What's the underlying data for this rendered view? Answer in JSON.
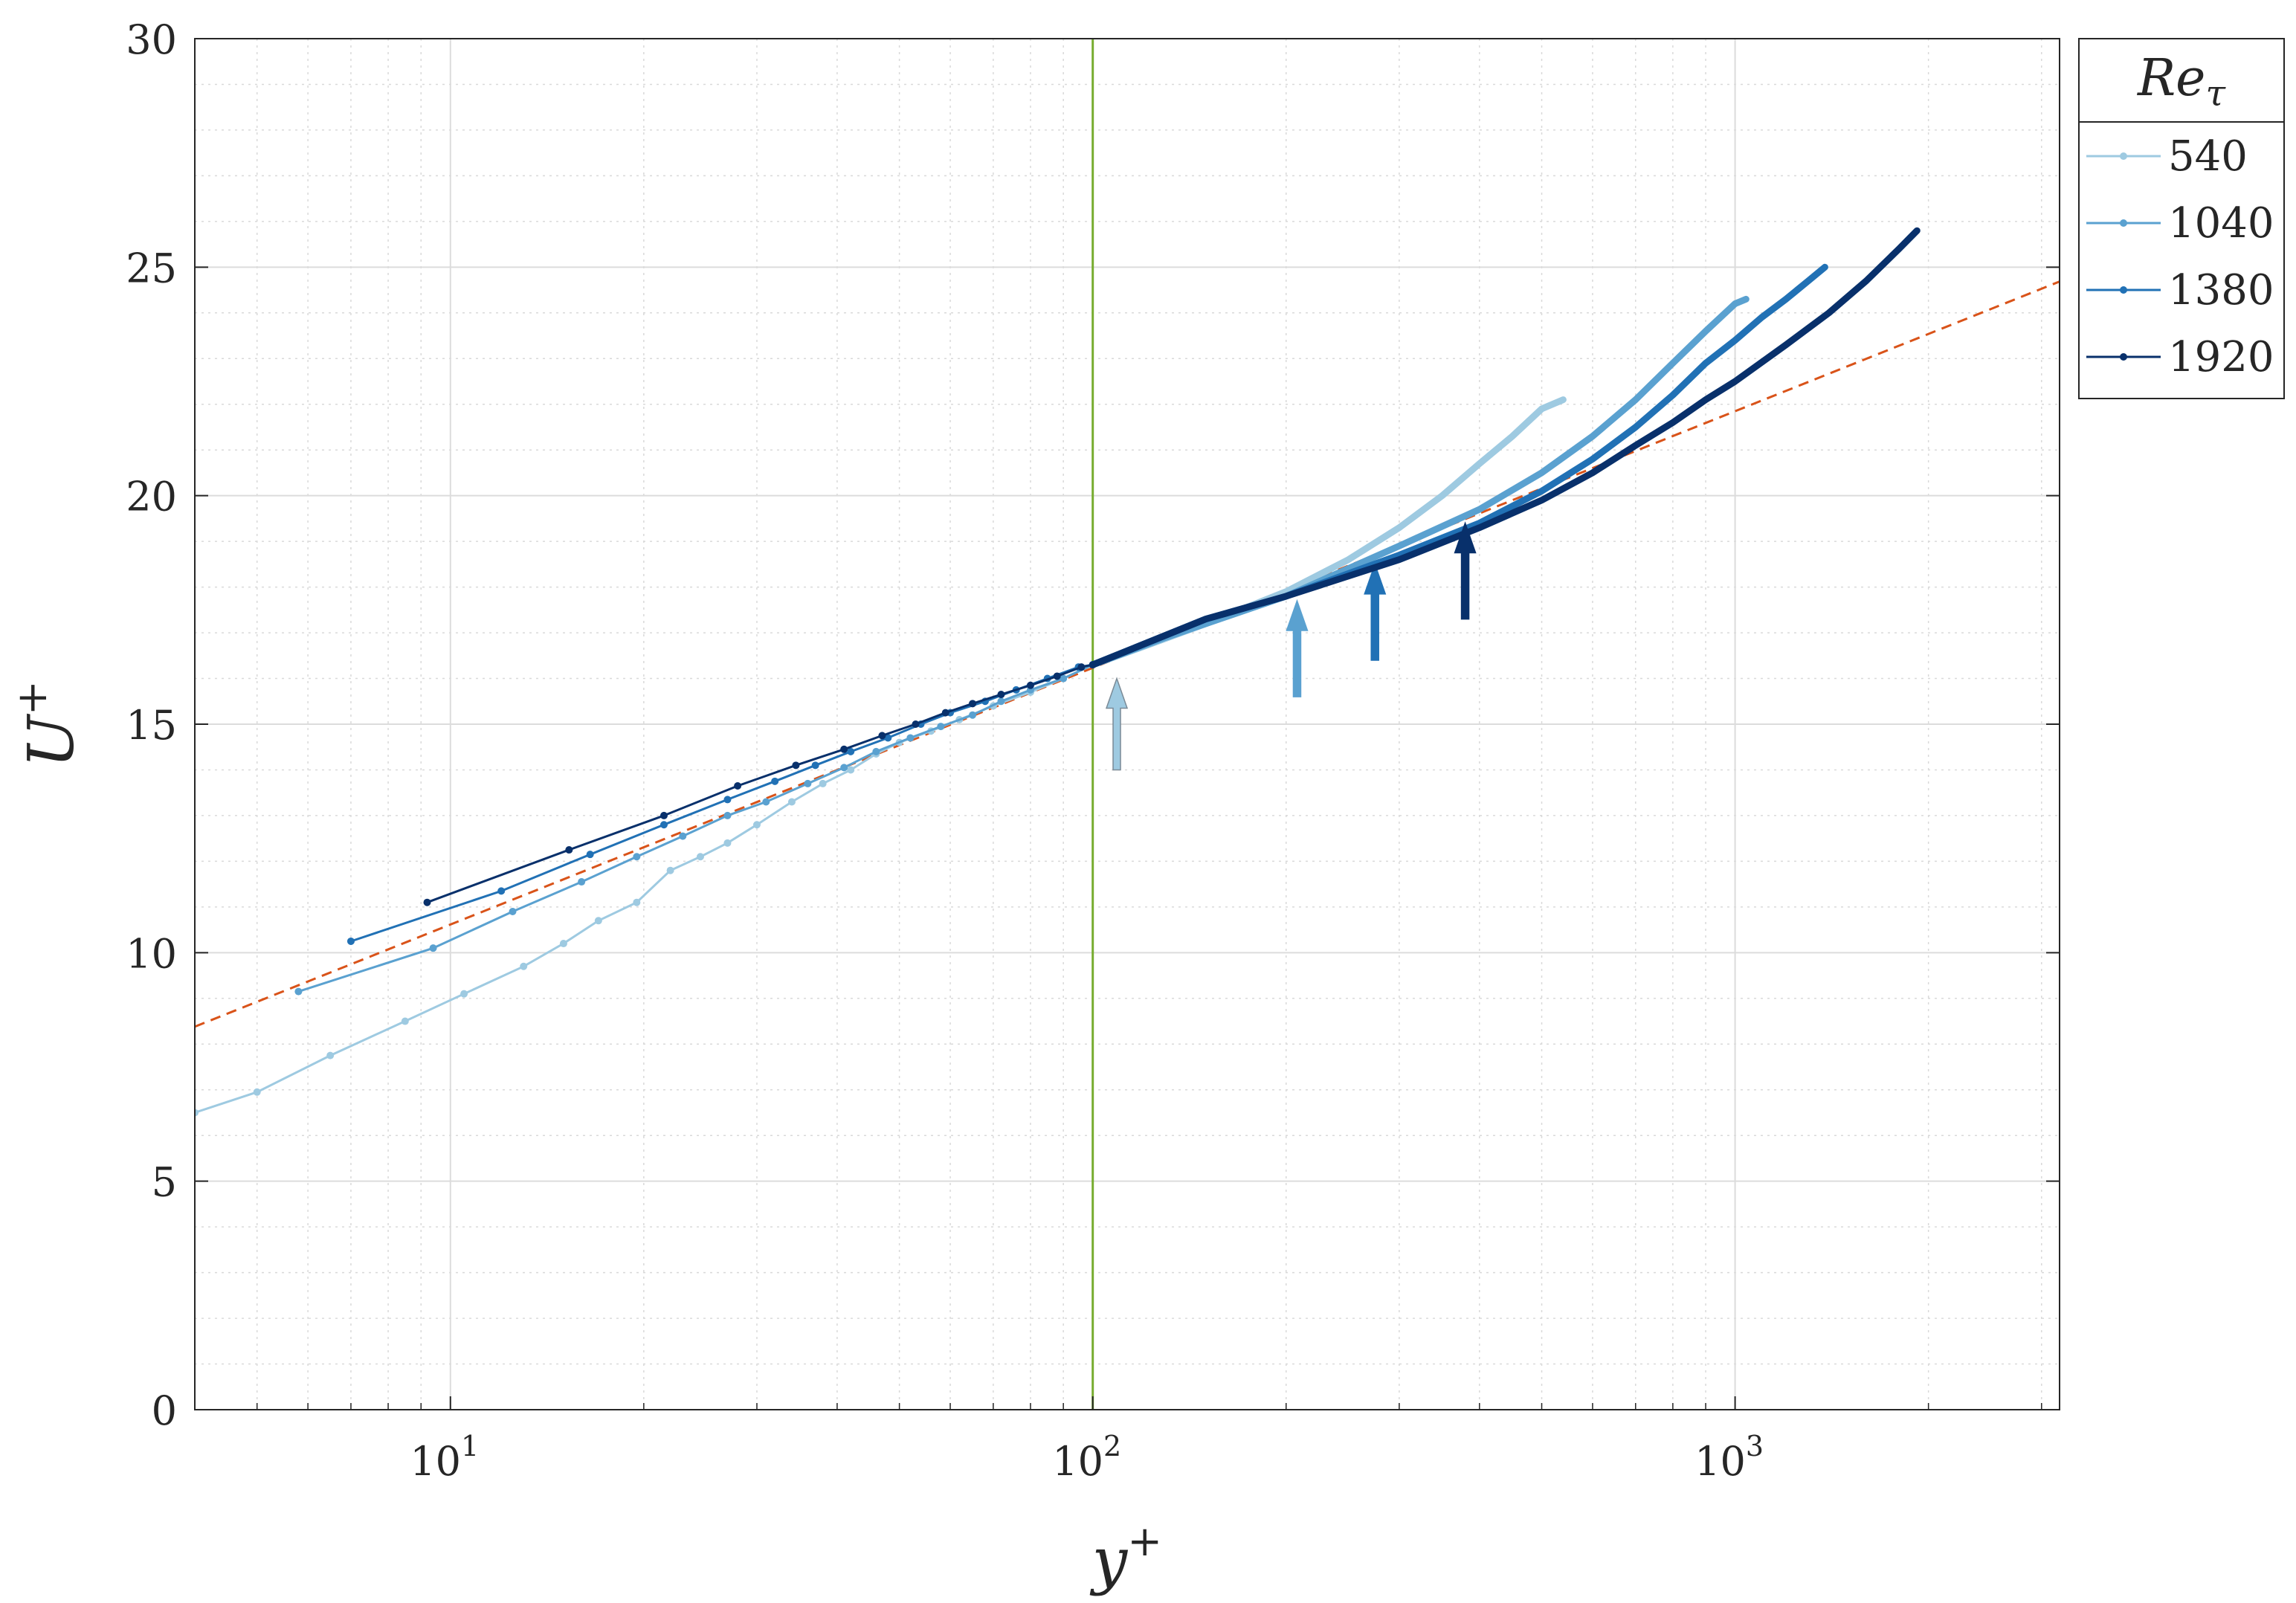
{
  "chart_data": {
    "type": "line",
    "x_scale": "log",
    "xlabel": "y",
    "xlabel_sup": "+",
    "ylabel": "U",
    "ylabel_sup": "+",
    "xlim": [
      4,
      3200
    ],
    "ylim": [
      0,
      30
    ],
    "x_ticks": [
      10,
      100,
      1000
    ],
    "x_tick_labels": [
      {
        "base": "10",
        "exp": "1"
      },
      {
        "base": "10",
        "exp": "2"
      },
      {
        "base": "10",
        "exp": "3"
      }
    ],
    "y_ticks": [
      0,
      5,
      10,
      15,
      20,
      25,
      30
    ],
    "y_tick_labels": [
      "0",
      "5",
      "10",
      "15",
      "20",
      "25",
      "30"
    ],
    "grid": true,
    "minor_grid": true,
    "legend": {
      "position": "outside-right-top",
      "title_base": "Re",
      "title_sub": "τ"
    },
    "log_law": {
      "kappa": 0.41,
      "B": 5.0,
      "color": "#d95319",
      "style": "dashed"
    },
    "vertical_line": {
      "x": 100,
      "color": "#77ac30"
    },
    "series": [
      {
        "name": "540",
        "color": "#9ecae1",
        "points": [
          [
            4,
            6.5
          ],
          [
            5,
            6.95
          ],
          [
            6.5,
            7.75
          ],
          [
            8.5,
            8.5
          ],
          [
            10.5,
            9.1
          ],
          [
            13,
            9.7
          ],
          [
            15,
            10.2
          ],
          [
            17,
            10.7
          ],
          [
            19.5,
            11.1
          ],
          [
            22,
            11.8
          ],
          [
            24.5,
            12.1
          ],
          [
            27,
            12.4
          ],
          [
            30,
            12.8
          ],
          [
            34,
            13.3
          ],
          [
            38,
            13.7
          ],
          [
            42,
            14.0
          ],
          [
            46,
            14.35
          ],
          [
            50,
            14.6
          ],
          [
            56,
            14.85
          ],
          [
            62,
            15.1
          ],
          [
            70,
            15.4
          ],
          [
            80,
            15.7
          ],
          [
            90,
            16.0
          ],
          [
            100,
            16.3
          ],
          [
            120,
            16.7
          ],
          [
            150,
            17.2
          ],
          [
            200,
            17.9
          ],
          [
            250,
            18.6
          ],
          [
            300,
            19.3
          ],
          [
            350,
            20.0
          ],
          [
            400,
            20.7
          ],
          [
            450,
            21.3
          ],
          [
            500,
            21.9
          ],
          [
            540,
            22.1
          ]
        ],
        "marker_until": 100,
        "arrow": {
          "x": 109,
          "y_base": 14.0,
          "y_tip": 16.0
        }
      },
      {
        "name": "1040",
        "color": "#5aa1d0",
        "points": [
          [
            5.8,
            9.15
          ],
          [
            9.4,
            10.1
          ],
          [
            12.5,
            10.9
          ],
          [
            16,
            11.55
          ],
          [
            19.5,
            12.1
          ],
          [
            23,
            12.55
          ],
          [
            27,
            13.0
          ],
          [
            31,
            13.3
          ],
          [
            36,
            13.7
          ],
          [
            41,
            14.05
          ],
          [
            46,
            14.4
          ],
          [
            52,
            14.7
          ],
          [
            58,
            14.95
          ],
          [
            65,
            15.2
          ],
          [
            72,
            15.5
          ],
          [
            80,
            15.75
          ],
          [
            90,
            16.0
          ],
          [
            100,
            16.3
          ],
          [
            130,
            16.9
          ],
          [
            200,
            17.8
          ],
          [
            300,
            18.9
          ],
          [
            400,
            19.7
          ],
          [
            500,
            20.5
          ],
          [
            600,
            21.3
          ],
          [
            700,
            22.1
          ],
          [
            800,
            22.9
          ],
          [
            900,
            23.6
          ],
          [
            1000,
            24.2
          ],
          [
            1040,
            24.3
          ]
        ],
        "marker_until": 100,
        "arrow": {
          "x": 208,
          "y_base": 15.6,
          "y_tip": 17.7
        }
      },
      {
        "name": "1380",
        "color": "#2171b5",
        "points": [
          [
            7,
            10.25
          ],
          [
            12,
            11.35
          ],
          [
            16.5,
            12.15
          ],
          [
            21.5,
            12.8
          ],
          [
            27,
            13.35
          ],
          [
            32,
            13.75
          ],
          [
            37,
            14.1
          ],
          [
            42,
            14.4
          ],
          [
            48,
            14.7
          ],
          [
            54,
            15.0
          ],
          [
            60,
            15.25
          ],
          [
            68,
            15.5
          ],
          [
            76,
            15.75
          ],
          [
            85,
            16.0
          ],
          [
            95,
            16.25
          ],
          [
            100,
            16.3
          ],
          [
            150,
            17.3
          ],
          [
            200,
            17.8
          ],
          [
            300,
            18.7
          ],
          [
            400,
            19.4
          ],
          [
            500,
            20.1
          ],
          [
            600,
            20.8
          ],
          [
            700,
            21.5
          ],
          [
            800,
            22.2
          ],
          [
            900,
            22.9
          ],
          [
            1000,
            23.4
          ],
          [
            1100,
            23.9
          ],
          [
            1200,
            24.3
          ],
          [
            1300,
            24.7
          ],
          [
            1380,
            25.0
          ]
        ],
        "marker_until": 100,
        "arrow": {
          "x": 275,
          "y_base": 16.4,
          "y_tip": 18.5
        }
      },
      {
        "name": "1920",
        "color": "#08306b",
        "points": [
          [
            9.2,
            11.1
          ],
          [
            15.3,
            12.25
          ],
          [
            21.5,
            13.0
          ],
          [
            28,
            13.65
          ],
          [
            34.5,
            14.1
          ],
          [
            41,
            14.45
          ],
          [
            47,
            14.75
          ],
          [
            53,
            15.0
          ],
          [
            59,
            15.25
          ],
          [
            65,
            15.45
          ],
          [
            72,
            15.65
          ],
          [
            80,
            15.85
          ],
          [
            88,
            16.05
          ],
          [
            96,
            16.25
          ],
          [
            100,
            16.3
          ],
          [
            150,
            17.3
          ],
          [
            200,
            17.8
          ],
          [
            300,
            18.6
          ],
          [
            400,
            19.3
          ],
          [
            500,
            19.9
          ],
          [
            600,
            20.5
          ],
          [
            700,
            21.1
          ],
          [
            800,
            21.6
          ],
          [
            900,
            22.1
          ],
          [
            1000,
            22.5
          ],
          [
            1200,
            23.3
          ],
          [
            1400,
            24.0
          ],
          [
            1600,
            24.7
          ],
          [
            1800,
            25.4
          ],
          [
            1920,
            25.8
          ]
        ],
        "marker_until": 100,
        "arrow": {
          "x": 380,
          "y_base": 17.3,
          "y_tip": 19.4
        }
      }
    ]
  }
}
